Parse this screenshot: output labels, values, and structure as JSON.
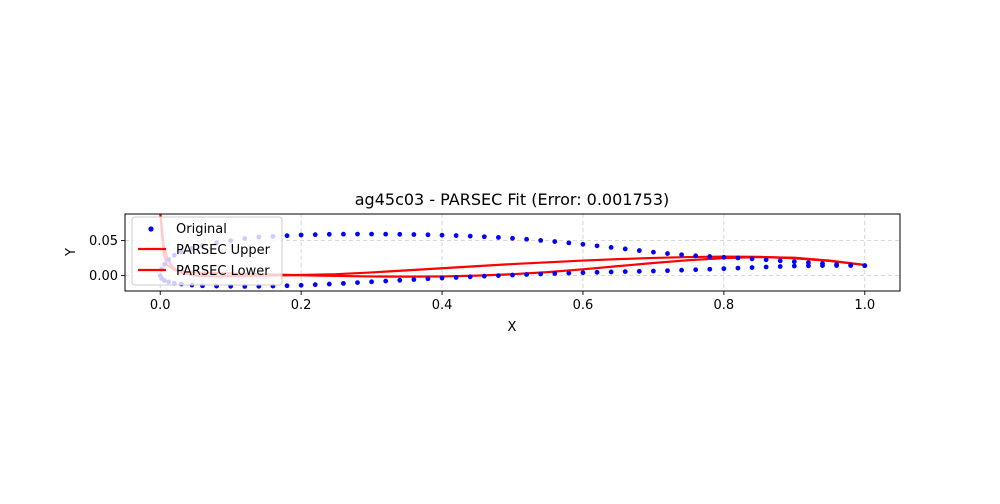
{
  "chart_data": {
    "type": "scatter",
    "title": "ag45c03 - PARSEC Fit (Error: 0.001753)",
    "xlabel": "X",
    "ylabel": "Y",
    "xlim": [
      -0.05,
      1.05
    ],
    "ylim": [
      -0.022,
      0.088
    ],
    "xticks": [
      0.0,
      0.2,
      0.4,
      0.6,
      0.8,
      1.0
    ],
    "xtick_labels": [
      "0.0",
      "0.2",
      "0.4",
      "0.6",
      "0.8",
      "1.0"
    ],
    "yticks": [
      0.0,
      0.05
    ],
    "ytick_labels": [
      "0.00",
      "0.05"
    ],
    "grid": true,
    "legend_position": "top-left",
    "series": [
      {
        "name": "Original",
        "kind": "scatter",
        "color": "#0000ff",
        "upper": {
          "x": [
            0.0,
            0.002,
            0.006,
            0.012,
            0.02,
            0.03,
            0.045,
            0.06,
            0.08,
            0.1,
            0.12,
            0.14,
            0.16,
            0.18,
            0.2,
            0.22,
            0.24,
            0.26,
            0.28,
            0.3,
            0.32,
            0.34,
            0.36,
            0.38,
            0.4,
            0.42,
            0.44,
            0.46,
            0.48,
            0.5,
            0.52,
            0.54,
            0.56,
            0.58,
            0.6,
            0.62,
            0.64,
            0.66,
            0.68,
            0.7,
            0.72,
            0.74,
            0.76,
            0.78,
            0.8,
            0.82,
            0.84,
            0.86,
            0.88,
            0.9,
            0.92,
            0.94,
            0.96,
            0.98,
            1.0
          ],
          "y": [
            0.0,
            0.009,
            0.016,
            0.023,
            0.029,
            0.034,
            0.039,
            0.043,
            0.047,
            0.05,
            0.053,
            0.055,
            0.056,
            0.057,
            0.058,
            0.0585,
            0.059,
            0.0592,
            0.0593,
            0.0593,
            0.0592,
            0.059,
            0.0587,
            0.0583,
            0.0578,
            0.0572,
            0.0564,
            0.0555,
            0.0545,
            0.0533,
            0.0519,
            0.0503,
            0.0486,
            0.0467,
            0.0447,
            0.0425,
            0.0403,
            0.0381,
            0.0358,
            0.0335,
            0.0315,
            0.0298,
            0.0283,
            0.0272,
            0.0262,
            0.0252,
            0.024,
            0.0226,
            0.0211,
            0.0198,
            0.0185,
            0.0172,
            0.016,
            0.015,
            0.0142
          ]
        },
        "lower": {
          "x": [
            0.002,
            0.006,
            0.012,
            0.02,
            0.03,
            0.045,
            0.06,
            0.08,
            0.1,
            0.12,
            0.14,
            0.16,
            0.18,
            0.2,
            0.22,
            0.24,
            0.26,
            0.28,
            0.3,
            0.32,
            0.34,
            0.36,
            0.38,
            0.4,
            0.42,
            0.44,
            0.46,
            0.48,
            0.5,
            0.52,
            0.54,
            0.56,
            0.58,
            0.6,
            0.62,
            0.64,
            0.66,
            0.68,
            0.7,
            0.72,
            0.74,
            0.76,
            0.78,
            0.8,
            0.82,
            0.84,
            0.86,
            0.88,
            0.9,
            0.92,
            0.94,
            0.96,
            0.98,
            1.0
          ],
          "y": [
            -0.004,
            -0.007,
            -0.009,
            -0.011,
            -0.012,
            -0.0135,
            -0.0145,
            -0.015,
            -0.0153,
            -0.0154,
            -0.0153,
            -0.015,
            -0.0145,
            -0.0138,
            -0.013,
            -0.0121,
            -0.0111,
            -0.01,
            -0.0089,
            -0.0078,
            -0.0067,
            -0.0056,
            -0.0045,
            -0.0035,
            -0.0026,
            -0.0017,
            -0.0008,
            0.0,
            0.0008,
            0.0016,
            0.0023,
            0.003,
            0.0036,
            0.0042,
            0.0047,
            0.0052,
            0.0057,
            0.0061,
            0.0065,
            0.0071,
            0.0077,
            0.0084,
            0.0091,
            0.0099,
            0.0107,
            0.0115,
            0.0123,
            0.013,
            0.0136,
            0.014,
            0.0143,
            0.0144,
            0.0143,
            0.0142
          ]
        }
      },
      {
        "name": "PARSEC Upper",
        "kind": "line",
        "color": "#ff0000",
        "x": [
          0.0,
          0.005,
          0.01,
          0.015,
          0.02,
          0.03,
          0.05,
          0.08,
          0.12,
          0.18,
          0.25,
          0.3,
          0.35,
          0.4,
          0.45,
          0.5,
          0.55,
          0.6,
          0.65,
          0.7,
          0.75,
          0.8,
          0.85,
          0.9,
          0.95,
          1.0
        ],
        "y": [
          0.09,
          0.042,
          0.025,
          0.016,
          0.01,
          0.004,
          0.0,
          -0.001,
          -0.0005,
          0.0005,
          0.002,
          0.0045,
          0.0075,
          0.0105,
          0.0135,
          0.0165,
          0.019,
          0.0215,
          0.0235,
          0.0252,
          0.0265,
          0.0272,
          0.0268,
          0.0248,
          0.021,
          0.0152
        ]
      },
      {
        "name": "PARSEC Lower",
        "kind": "line",
        "color": "#ff0000",
        "x": [
          0.0,
          0.005,
          0.01,
          0.02,
          0.04,
          0.07,
          0.1,
          0.15,
          0.2,
          0.25,
          0.3,
          0.35,
          0.4,
          0.45,
          0.5,
          0.55,
          0.6,
          0.65,
          0.7,
          0.75,
          0.8,
          0.85,
          0.9,
          0.95,
          1.0
        ],
        "y": [
          0.09,
          0.03,
          0.015,
          0.008,
          0.005,
          0.004,
          0.003,
          0.0018,
          0.0005,
          -0.0005,
          -0.0012,
          -0.0015,
          -0.0012,
          0.0,
          0.002,
          0.005,
          0.009,
          0.0135,
          0.018,
          0.022,
          0.025,
          0.0265,
          0.0255,
          0.0215,
          0.0152
        ]
      }
    ]
  }
}
